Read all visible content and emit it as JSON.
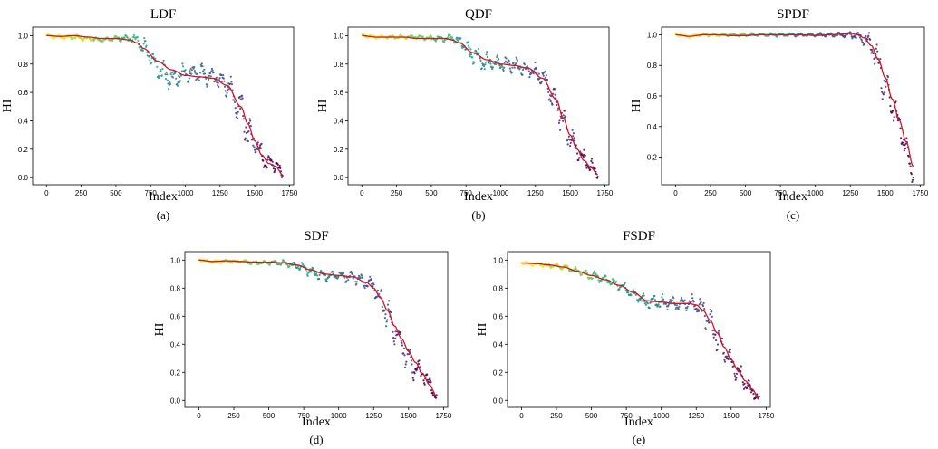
{
  "colors": {
    "fit": "#d4151f",
    "scatter": [
      "#fde725",
      "#b5de2b",
      "#6ece58",
      "#35b779",
      "#1f9e89",
      "#26828e",
      "#31688e",
      "#3e4989",
      "#482878",
      "#440154"
    ]
  },
  "chart_data": [
    {
      "type": "scatter",
      "title": "LDF",
      "caption": "(a)",
      "xlabel": "Index",
      "ylabel": "HI",
      "xlim": [
        -100,
        1780
      ],
      "ylim": [
        -0.05,
        1.06
      ],
      "xticks": [
        "0",
        "250",
        "500",
        "750",
        "1000",
        "1250",
        "1500",
        "1750"
      ],
      "yticks": [
        "0.0",
        "0.2",
        "0.4",
        "0.6",
        "0.8",
        "1.0"
      ],
      "x_knots": [
        0,
        100,
        200,
        300,
        400,
        500,
        600,
        650,
        700,
        800,
        900,
        1000,
        1100,
        1200,
        1300,
        1400,
        1450,
        1500,
        1550,
        1600,
        1650,
        1700
      ],
      "y_fit": [
        1.0,
        0.995,
        1.0,
        0.99,
        0.98,
        0.98,
        0.97,
        0.95,
        0.91,
        0.82,
        0.76,
        0.72,
        0.71,
        0.7,
        0.65,
        0.5,
        0.38,
        0.26,
        0.16,
        0.1,
        0.08,
        0.02
      ],
      "y_points": [
        1.0,
        0.99,
        0.99,
        0.98,
        0.97,
        0.98,
        0.98,
        0.96,
        0.92,
        0.77,
        0.7,
        0.73,
        0.74,
        0.71,
        0.66,
        0.48,
        0.33,
        0.24,
        0.15,
        0.1,
        0.09,
        0.02
      ],
      "noise": [
        0.012,
        0.012,
        0.012,
        0.012,
        0.012,
        0.014,
        0.02,
        0.04,
        0.05,
        0.07,
        0.06,
        0.05,
        0.05,
        0.05,
        0.07,
        0.09,
        0.1,
        0.08,
        0.07,
        0.05,
        0.04,
        0.02
      ]
    },
    {
      "type": "scatter",
      "title": "QDF",
      "caption": "(b)",
      "xlabel": "Index",
      "ylabel": "HI",
      "xlim": [
        -100,
        1780
      ],
      "ylim": [
        -0.05,
        1.06
      ],
      "xticks": [
        "0",
        "250",
        "500",
        "750",
        "1000",
        "1250",
        "1500",
        "1750"
      ],
      "yticks": [
        "0.0",
        "0.2",
        "0.4",
        "0.6",
        "0.8",
        "1.0"
      ],
      "x_knots": [
        0,
        100,
        200,
        300,
        400,
        500,
        600,
        650,
        700,
        800,
        900,
        1000,
        1100,
        1200,
        1300,
        1400,
        1450,
        1500,
        1550,
        1600,
        1650,
        1700
      ],
      "y_fit": [
        1.0,
        0.99,
        0.99,
        0.99,
        0.98,
        0.98,
        0.98,
        0.97,
        0.95,
        0.88,
        0.83,
        0.8,
        0.79,
        0.77,
        0.7,
        0.55,
        0.42,
        0.3,
        0.2,
        0.12,
        0.07,
        0.02
      ],
      "y_points": [
        1.0,
        0.99,
        0.99,
        0.99,
        0.99,
        0.98,
        0.98,
        0.98,
        0.96,
        0.87,
        0.81,
        0.8,
        0.79,
        0.76,
        0.71,
        0.53,
        0.4,
        0.28,
        0.2,
        0.12,
        0.08,
        0.02
      ],
      "noise": [
        0.01,
        0.01,
        0.01,
        0.01,
        0.01,
        0.014,
        0.018,
        0.03,
        0.04,
        0.06,
        0.05,
        0.04,
        0.04,
        0.04,
        0.06,
        0.08,
        0.08,
        0.07,
        0.06,
        0.05,
        0.04,
        0.02
      ]
    },
    {
      "type": "scatter",
      "title": "SPDF",
      "caption": "(c)",
      "xlabel": "Index",
      "ylabel": "HI",
      "xlim": [
        -100,
        1780
      ],
      "ylim": [
        0.02,
        1.05
      ],
      "xticks": [
        "0",
        "250",
        "500",
        "750",
        "1000",
        "1250",
        "1500",
        "1750"
      ],
      "yticks": [
        "0.2",
        "0.4",
        "0.6",
        "0.8",
        "1.0"
      ],
      "x_knots": [
        0,
        100,
        200,
        300,
        400,
        500,
        600,
        700,
        800,
        900,
        1000,
        1100,
        1200,
        1250,
        1300,
        1350,
        1400,
        1450,
        1500,
        1550,
        1600,
        1650,
        1700
      ],
      "y_fit": [
        1.0,
        0.99,
        1.0,
        1.0,
        0.995,
        0.995,
        1.0,
        1.0,
        1.0,
        1.0,
        0.995,
        1.0,
        1.005,
        1.01,
        1.0,
        0.98,
        0.93,
        0.84,
        0.72,
        0.58,
        0.44,
        0.3,
        0.14
      ],
      "y_points": [
        1.0,
        0.99,
        1.0,
        1.0,
        1.0,
        1.0,
        1.0,
        1.0,
        1.0,
        1.0,
        1.0,
        1.0,
        1.0,
        1.0,
        0.99,
        0.97,
        0.94,
        0.8,
        0.65,
        0.55,
        0.42,
        0.25,
        0.08
      ],
      "noise": [
        0.008,
        0.008,
        0.008,
        0.008,
        0.008,
        0.008,
        0.008,
        0.008,
        0.008,
        0.008,
        0.008,
        0.01,
        0.012,
        0.015,
        0.02,
        0.04,
        0.05,
        0.09,
        0.1,
        0.08,
        0.08,
        0.06,
        0.04
      ]
    },
    {
      "type": "scatter",
      "title": "SDF",
      "caption": "(d)",
      "xlabel": "Index",
      "ylabel": "HI",
      "xlim": [
        -100,
        1780
      ],
      "ylim": [
        -0.05,
        1.06
      ],
      "xticks": [
        "0",
        "250",
        "500",
        "750",
        "1000",
        "1250",
        "1500",
        "1750"
      ],
      "yticks": [
        "0.0",
        "0.2",
        "0.4",
        "0.6",
        "0.8",
        "1.0"
      ],
      "x_knots": [
        0,
        100,
        200,
        300,
        400,
        500,
        600,
        700,
        800,
        900,
        1000,
        1100,
        1200,
        1250,
        1300,
        1350,
        1400,
        1450,
        1500,
        1550,
        1600,
        1650,
        1700
      ],
      "y_fit": [
        1.0,
        0.99,
        0.995,
        0.99,
        0.985,
        0.985,
        0.98,
        0.965,
        0.93,
        0.9,
        0.89,
        0.88,
        0.84,
        0.8,
        0.73,
        0.64,
        0.53,
        0.44,
        0.35,
        0.27,
        0.19,
        0.11,
        0.03
      ],
      "y_points": [
        1.0,
        0.99,
        0.99,
        0.99,
        0.98,
        0.98,
        0.98,
        0.96,
        0.92,
        0.89,
        0.89,
        0.88,
        0.84,
        0.82,
        0.7,
        0.62,
        0.5,
        0.4,
        0.3,
        0.22,
        0.19,
        0.12,
        0.03
      ],
      "noise": [
        0.01,
        0.01,
        0.01,
        0.01,
        0.01,
        0.01,
        0.015,
        0.02,
        0.03,
        0.03,
        0.03,
        0.035,
        0.04,
        0.05,
        0.07,
        0.09,
        0.09,
        0.08,
        0.08,
        0.06,
        0.05,
        0.04,
        0.02
      ]
    },
    {
      "type": "scatter",
      "title": "FSDF",
      "caption": "(e)",
      "xlabel": "Index",
      "ylabel": "HI",
      "xlim": [
        -100,
        1780
      ],
      "ylim": [
        -0.05,
        1.06
      ],
      "xticks": [
        "0",
        "250",
        "500",
        "750",
        "1000",
        "1250",
        "1500",
        "1750"
      ],
      "yticks": [
        "0.0",
        "0.2",
        "0.4",
        "0.6",
        "0.8",
        "1.0"
      ],
      "x_knots": [
        0,
        100,
        200,
        300,
        400,
        500,
        600,
        700,
        800,
        900,
        1000,
        1100,
        1200,
        1250,
        1300,
        1350,
        1400,
        1450,
        1500,
        1550,
        1600,
        1650,
        1700
      ],
      "y_fit": [
        0.98,
        0.975,
        0.965,
        0.95,
        0.92,
        0.89,
        0.86,
        0.82,
        0.77,
        0.71,
        0.7,
        0.69,
        0.69,
        0.68,
        0.64,
        0.57,
        0.48,
        0.38,
        0.29,
        0.21,
        0.14,
        0.08,
        0.01
      ],
      "y_points": [
        0.98,
        0.97,
        0.96,
        0.95,
        0.92,
        0.89,
        0.86,
        0.82,
        0.76,
        0.7,
        0.7,
        0.69,
        0.69,
        0.68,
        0.64,
        0.56,
        0.46,
        0.36,
        0.28,
        0.2,
        0.13,
        0.07,
        0.01
      ],
      "noise": [
        0.01,
        0.01,
        0.012,
        0.015,
        0.02,
        0.025,
        0.025,
        0.025,
        0.03,
        0.035,
        0.035,
        0.035,
        0.04,
        0.06,
        0.07,
        0.08,
        0.08,
        0.08,
        0.07,
        0.06,
        0.05,
        0.04,
        0.02
      ]
    }
  ]
}
